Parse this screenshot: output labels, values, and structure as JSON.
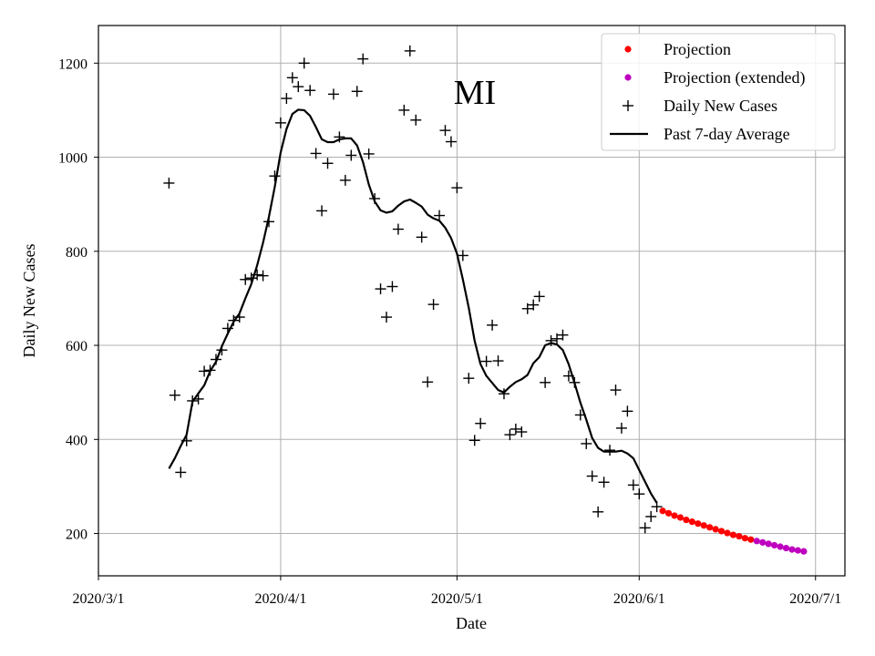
{
  "chart_data": {
    "type": "scatter",
    "title": "MI",
    "xlabel": "Date",
    "ylabel": "Daily New Cases",
    "x_tick_labels": [
      "2020/3/1",
      "2020/4/1",
      "2020/5/1",
      "2020/6/1",
      "2020/7/1"
    ],
    "x_tick_dates": [
      "2020-03-01",
      "2020-04-01",
      "2020-05-01",
      "2020-06-01",
      "2020-07-01"
    ],
    "y_ticks": [
      200,
      400,
      600,
      800,
      1000,
      1200
    ],
    "xlim": [
      "2020-03-01",
      "2020-07-06"
    ],
    "ylim": [
      110,
      1280
    ],
    "grid": true,
    "legend_position": "top-right",
    "colors": {
      "projection": "#ff0000",
      "projection_extended": "#bf00bf",
      "daily": "#000000",
      "average": "#000000",
      "grid": "#b0b0b0"
    },
    "series": [
      {
        "name": "Projection",
        "kind": "dots",
        "points": [
          [
            "2020-06-05",
            248
          ],
          [
            "2020-06-06",
            243
          ],
          [
            "2020-06-07",
            238
          ],
          [
            "2020-06-08",
            234
          ],
          [
            "2020-06-09",
            229
          ],
          [
            "2020-06-10",
            225
          ],
          [
            "2020-06-11",
            221
          ],
          [
            "2020-06-12",
            217
          ],
          [
            "2020-06-13",
            213
          ],
          [
            "2020-06-14",
            209
          ],
          [
            "2020-06-15",
            205
          ],
          [
            "2020-06-16",
            201
          ],
          [
            "2020-06-17",
            197
          ],
          [
            "2020-06-18",
            194
          ],
          [
            "2020-06-19",
            190
          ],
          [
            "2020-06-20",
            187
          ]
        ]
      },
      {
        "name": "Projection (extended)",
        "kind": "dots",
        "points": [
          [
            "2020-06-21",
            184
          ],
          [
            "2020-06-22",
            181
          ],
          [
            "2020-06-23",
            178
          ],
          [
            "2020-06-24",
            175
          ],
          [
            "2020-06-25",
            172
          ],
          [
            "2020-06-26",
            169
          ],
          [
            "2020-06-27",
            166
          ],
          [
            "2020-06-28",
            164
          ],
          [
            "2020-06-29",
            162
          ]
        ]
      },
      {
        "name": "Daily New Cases",
        "kind": "plus",
        "points": [
          [
            "2020-03-13",
            945
          ],
          [
            "2020-03-14",
            494
          ],
          [
            "2020-03-15",
            330
          ],
          [
            "2020-03-16",
            397
          ],
          [
            "2020-03-17",
            482
          ],
          [
            "2020-03-18",
            486
          ],
          [
            "2020-03-19",
            545
          ],
          [
            "2020-03-20",
            547
          ],
          [
            "2020-03-21",
            570
          ],
          [
            "2020-03-22",
            590
          ],
          [
            "2020-03-23",
            636
          ],
          [
            "2020-03-24",
            653
          ],
          [
            "2020-03-25",
            660
          ],
          [
            "2020-03-26",
            740
          ],
          [
            "2020-03-27",
            743
          ],
          [
            "2020-03-28",
            750
          ],
          [
            "2020-03-29",
            748
          ],
          [
            "2020-03-30",
            863
          ],
          [
            "2020-03-31",
            960
          ],
          [
            "2020-04-01",
            1073
          ],
          [
            "2020-04-02",
            1125
          ],
          [
            "2020-04-03",
            1169
          ],
          [
            "2020-04-04",
            1150
          ],
          [
            "2020-04-05",
            1200
          ],
          [
            "2020-04-06",
            1142
          ],
          [
            "2020-04-07",
            1008
          ],
          [
            "2020-04-08",
            886
          ],
          [
            "2020-04-09",
            987
          ],
          [
            "2020-04-10",
            1134
          ],
          [
            "2020-04-11",
            1043
          ],
          [
            "2020-04-12",
            951
          ],
          [
            "2020-04-13",
            1004
          ],
          [
            "2020-04-14",
            1140
          ],
          [
            "2020-04-15",
            1209
          ],
          [
            "2020-04-16",
            1007
          ],
          [
            "2020-04-17",
            912
          ],
          [
            "2020-04-18",
            720
          ],
          [
            "2020-04-19",
            660
          ],
          [
            "2020-04-20",
            725
          ],
          [
            "2020-04-21",
            847
          ],
          [
            "2020-04-22",
            1100
          ],
          [
            "2020-04-23",
            1226
          ],
          [
            "2020-04-24",
            1079
          ],
          [
            "2020-04-25",
            830
          ],
          [
            "2020-04-26",
            522
          ],
          [
            "2020-04-27",
            687
          ],
          [
            "2020-04-28",
            876
          ],
          [
            "2020-04-29",
            1057
          ],
          [
            "2020-04-30",
            1033
          ],
          [
            "2020-05-01",
            935
          ],
          [
            "2020-05-02",
            791
          ],
          [
            "2020-05-03",
            530
          ],
          [
            "2020-05-04",
            398
          ],
          [
            "2020-05-05",
            434
          ],
          [
            "2020-05-06",
            566
          ],
          [
            "2020-05-07",
            643
          ],
          [
            "2020-05-08",
            567
          ],
          [
            "2020-05-09",
            497
          ],
          [
            "2020-05-10",
            410
          ],
          [
            "2020-05-11",
            422
          ],
          [
            "2020-05-12",
            416
          ],
          [
            "2020-05-13",
            678
          ],
          [
            "2020-05-14",
            686
          ],
          [
            "2020-05-15",
            704
          ],
          [
            "2020-05-16",
            521
          ],
          [
            "2020-05-17",
            610
          ],
          [
            "2020-05-18",
            614
          ],
          [
            "2020-05-19",
            622
          ],
          [
            "2020-05-20",
            535
          ],
          [
            "2020-05-21",
            521
          ],
          [
            "2020-05-22",
            452
          ],
          [
            "2020-05-23",
            391
          ],
          [
            "2020-05-24",
            322
          ],
          [
            "2020-05-25",
            246
          ],
          [
            "2020-05-26",
            309
          ],
          [
            "2020-05-27",
            377
          ],
          [
            "2020-05-28",
            505
          ],
          [
            "2020-05-29",
            424
          ],
          [
            "2020-05-30",
            460
          ],
          [
            "2020-05-31",
            303
          ],
          [
            "2020-06-01",
            284
          ],
          [
            "2020-06-02",
            212
          ],
          [
            "2020-06-03",
            236
          ],
          [
            "2020-06-04",
            257
          ]
        ]
      },
      {
        "name": "Past 7-day Average",
        "kind": "line",
        "points": [
          [
            "2020-03-13",
            338
          ],
          [
            "2020-03-14",
            360
          ],
          [
            "2020-03-15",
            386
          ],
          [
            "2020-03-16",
            410
          ],
          [
            "2020-03-17",
            480
          ],
          [
            "2020-03-18",
            498
          ],
          [
            "2020-03-19",
            515
          ],
          [
            "2020-03-20",
            545
          ],
          [
            "2020-03-21",
            565
          ],
          [
            "2020-03-22",
            598
          ],
          [
            "2020-03-23",
            625
          ],
          [
            "2020-03-24",
            650
          ],
          [
            "2020-03-25",
            668
          ],
          [
            "2020-03-26",
            700
          ],
          [
            "2020-03-27",
            730
          ],
          [
            "2020-03-28",
            770
          ],
          [
            "2020-03-29",
            818
          ],
          [
            "2020-03-30",
            873
          ],
          [
            "2020-03-31",
            937
          ],
          [
            "2020-04-01",
            1010
          ],
          [
            "2020-04-02",
            1060
          ],
          [
            "2020-04-03",
            1092
          ],
          [
            "2020-04-04",
            1101
          ],
          [
            "2020-04-05",
            1100
          ],
          [
            "2020-04-06",
            1088
          ],
          [
            "2020-04-07",
            1064
          ],
          [
            "2020-04-08",
            1038
          ],
          [
            "2020-04-09",
            1032
          ],
          [
            "2020-04-10",
            1032
          ],
          [
            "2020-04-11",
            1038
          ],
          [
            "2020-04-12",
            1040
          ],
          [
            "2020-04-13",
            1040
          ],
          [
            "2020-04-14",
            1025
          ],
          [
            "2020-04-15",
            990
          ],
          [
            "2020-04-16",
            942
          ],
          [
            "2020-04-17",
            906
          ],
          [
            "2020-04-18",
            887
          ],
          [
            "2020-04-19",
            882
          ],
          [
            "2020-04-20",
            885
          ],
          [
            "2020-04-21",
            897
          ],
          [
            "2020-04-22",
            906
          ],
          [
            "2020-04-23",
            910
          ],
          [
            "2020-04-24",
            903
          ],
          [
            "2020-04-25",
            895
          ],
          [
            "2020-04-26",
            878
          ],
          [
            "2020-04-27",
            870
          ],
          [
            "2020-04-28",
            865
          ],
          [
            "2020-04-29",
            850
          ],
          [
            "2020-04-30",
            828
          ],
          [
            "2020-05-01",
            795
          ],
          [
            "2020-05-02",
            740
          ],
          [
            "2020-05-03",
            680
          ],
          [
            "2020-05-04",
            610
          ],
          [
            "2020-05-05",
            560
          ],
          [
            "2020-05-06",
            535
          ],
          [
            "2020-05-07",
            520
          ],
          [
            "2020-05-08",
            505
          ],
          [
            "2020-05-09",
            500
          ],
          [
            "2020-05-10",
            512
          ],
          [
            "2020-05-11",
            522
          ],
          [
            "2020-05-12",
            528
          ],
          [
            "2020-05-13",
            537
          ],
          [
            "2020-05-14",
            562
          ],
          [
            "2020-05-15",
            575
          ],
          [
            "2020-05-16",
            600
          ],
          [
            "2020-05-17",
            605
          ],
          [
            "2020-05-18",
            602
          ],
          [
            "2020-05-19",
            590
          ],
          [
            "2020-05-20",
            560
          ],
          [
            "2020-05-21",
            520
          ],
          [
            "2020-05-22",
            478
          ],
          [
            "2020-05-23",
            442
          ],
          [
            "2020-05-24",
            403
          ],
          [
            "2020-05-25",
            382
          ],
          [
            "2020-05-26",
            374
          ],
          [
            "2020-05-27",
            374
          ],
          [
            "2020-05-28",
            374
          ],
          [
            "2020-05-29",
            376
          ],
          [
            "2020-05-30",
            370
          ],
          [
            "2020-05-31",
            360
          ],
          [
            "2020-06-01",
            335
          ],
          [
            "2020-06-02",
            310
          ],
          [
            "2020-06-03",
            285
          ],
          [
            "2020-06-04",
            265
          ]
        ]
      }
    ]
  }
}
